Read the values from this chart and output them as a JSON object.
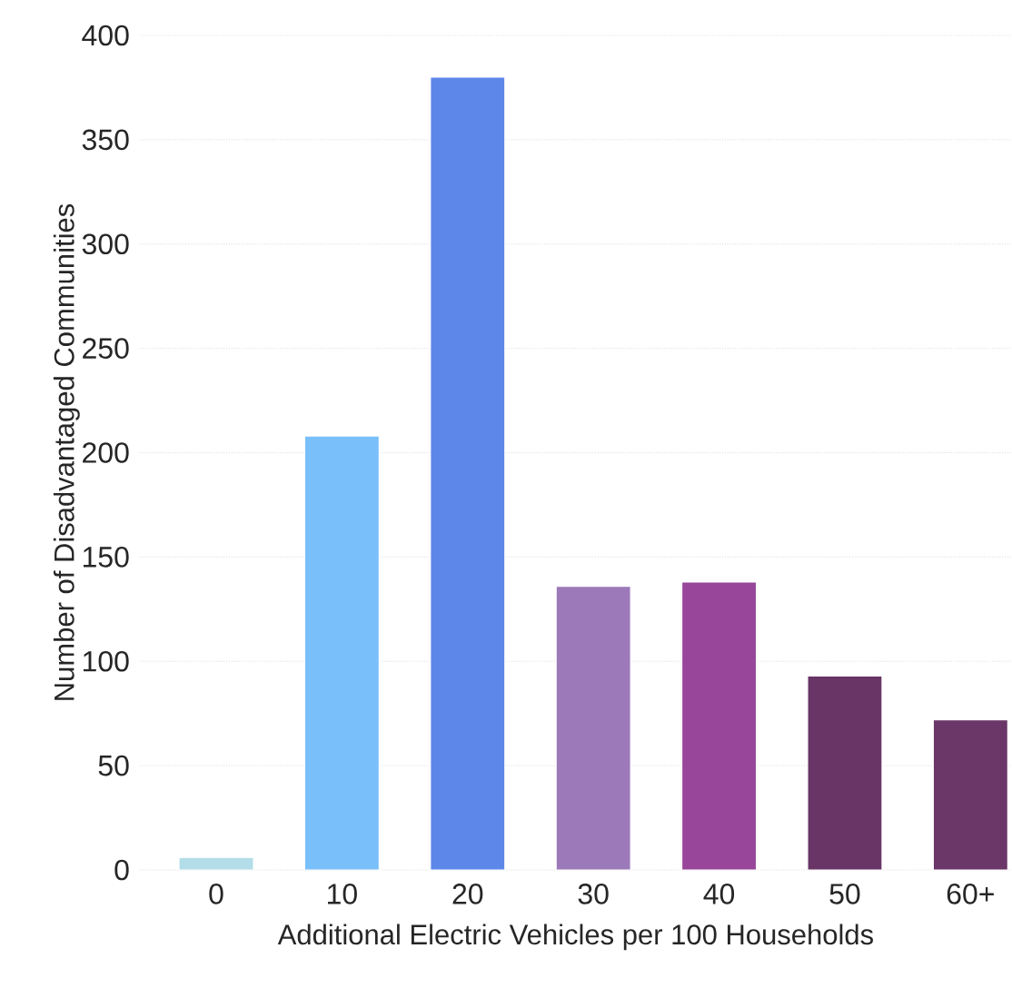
{
  "chart_data": {
    "type": "bar",
    "xlabel": "Additional Electric Vehicles per 100 Households",
    "ylabel": "Number of Disadvantaged Communities",
    "categories": [
      "0",
      "10",
      "20",
      "30",
      "40",
      "50",
      "60+"
    ],
    "values": [
      6,
      208,
      380,
      136,
      138,
      93,
      72
    ],
    "colors": [
      "#b3dde8",
      "#79bffa",
      "#5d87e8",
      "#9c79b8",
      "#974699",
      "#693566",
      "#6b3668"
    ],
    "ylim": [
      0,
      400
    ],
    "yticks": [
      0,
      50,
      100,
      150,
      200,
      250,
      300,
      350,
      400
    ],
    "grid": "y"
  }
}
